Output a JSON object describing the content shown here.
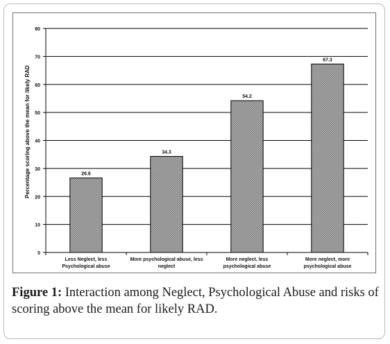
{
  "chart_data": {
    "type": "bar",
    "categories": [
      [
        "Less Neglect, less",
        "Psychological abuse"
      ],
      [
        "More psychological abuse, less",
        "neglect"
      ],
      [
        "More neglect, less",
        "psychological abuse"
      ],
      [
        "More neglect, more",
        "psychological abuse"
      ]
    ],
    "values": [
      26.6,
      34.3,
      54.2,
      67.3
    ],
    "value_labels": [
      "26.6",
      "34.3",
      "54.2",
      "67.3"
    ],
    "ylabel": "Percentage scoring above the mean for likely RAD",
    "ylim": [
      0,
      80
    ],
    "yticks": [
      0,
      10,
      20,
      30,
      40,
      50,
      60,
      70,
      80
    ],
    "grid": true,
    "bar_fill": "#9a9a9a"
  },
  "caption": {
    "label": "Figure 1:",
    "text": " Interaction among Neglect, Psychological Abuse and risks of scoring above the mean for likely RAD."
  }
}
